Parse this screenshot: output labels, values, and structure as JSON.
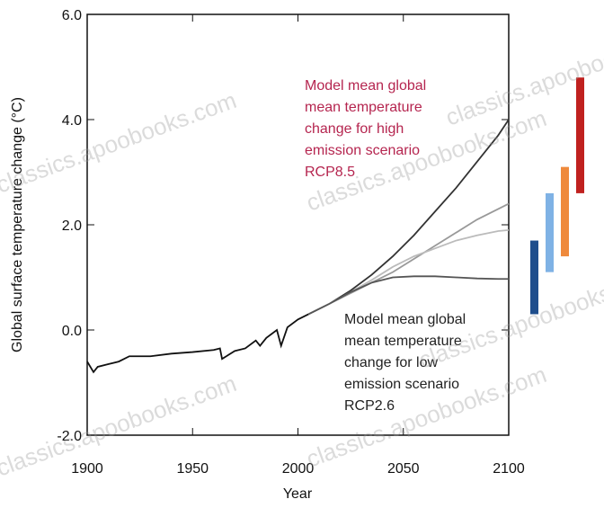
{
  "chart_data": {
    "type": "line",
    "xlabel": "Year",
    "ylabel": "Global surface temperature change (°C)",
    "xlim": [
      1900,
      2100
    ],
    "ylim": [
      -2,
      6
    ],
    "xticks": [
      1900,
      1950,
      2000,
      2050,
      2100
    ],
    "yticks": [
      {
        "value": 6,
        "label": "6.0"
      },
      {
        "value": 4,
        "label": "4.0"
      },
      {
        "value": 2,
        "label": "2.0"
      },
      {
        "value": 0,
        "label": "0.0"
      },
      {
        "value": -2,
        "label": "-2.0"
      }
    ],
    "series": [
      {
        "color": "#111111",
        "x": [
          1900,
          1903,
          1905,
          1910,
          1915,
          1920,
          1930,
          1940,
          1950,
          1960,
          1963,
          1964,
          1966,
          1970,
          1975,
          1980,
          1982,
          1985,
          1990,
          1992,
          1995,
          2000,
          2005
        ],
        "values": [
          -0.6,
          -0.8,
          -0.7,
          -0.65,
          -0.6,
          -0.5,
          -0.5,
          -0.45,
          -0.42,
          -0.38,
          -0.35,
          -0.55,
          -0.5,
          -0.4,
          -0.35,
          -0.2,
          -0.3,
          -0.15,
          0.0,
          -0.3,
          0.05,
          0.2,
          0.3
        ]
      },
      {
        "color": "#333333",
        "x": [
          2005,
          2015,
          2025,
          2035,
          2045,
          2055,
          2065,
          2075,
          2085,
          2095,
          2100
        ],
        "values": [
          0.3,
          0.5,
          0.75,
          1.05,
          1.4,
          1.8,
          2.25,
          2.7,
          3.2,
          3.7,
          4.0
        ]
      },
      {
        "color": "#999999",
        "x": [
          2005,
          2015,
          2025,
          2035,
          2045,
          2055,
          2065,
          2075,
          2085,
          2095,
          2100
        ],
        "values": [
          0.3,
          0.5,
          0.7,
          0.9,
          1.1,
          1.35,
          1.6,
          1.85,
          2.1,
          2.3,
          2.4
        ]
      },
      {
        "color": "#bbbbbb",
        "x": [
          2005,
          2015,
          2025,
          2035,
          2045,
          2055,
          2065,
          2075,
          2085,
          2095,
          2100
        ],
        "values": [
          0.3,
          0.5,
          0.72,
          0.95,
          1.2,
          1.4,
          1.55,
          1.7,
          1.8,
          1.88,
          1.9
        ]
      },
      {
        "color": "#555555",
        "x": [
          2005,
          2015,
          2025,
          2035,
          2045,
          2055,
          2065,
          2075,
          2085,
          2095,
          2100
        ],
        "values": [
          0.3,
          0.5,
          0.72,
          0.9,
          1.0,
          1.02,
          1.02,
          1.0,
          0.98,
          0.97,
          0.97
        ]
      }
    ],
    "ranges": [
      {
        "color": "#1f4e8c",
        "low": 0.3,
        "high": 1.7
      },
      {
        "color": "#7fb2e5",
        "low": 1.1,
        "high": 2.6
      },
      {
        "color": "#ef8a3c",
        "low": 1.4,
        "high": 3.1
      },
      {
        "color": "#c0211f",
        "low": 2.6,
        "high": 4.8
      }
    ],
    "annotations": [
      {
        "lines": [
          "Model mean global",
          "mean temperature",
          "change for high",
          "emission scenario",
          "RCP8.5"
        ],
        "color": "#b5254f"
      },
      {
        "lines": [
          "Model mean global",
          "mean temperature",
          "change for low",
          "emission scenario",
          "RCP2.6"
        ],
        "color": "#222222"
      }
    ],
    "watermark": "classics.apoobooks.com"
  }
}
